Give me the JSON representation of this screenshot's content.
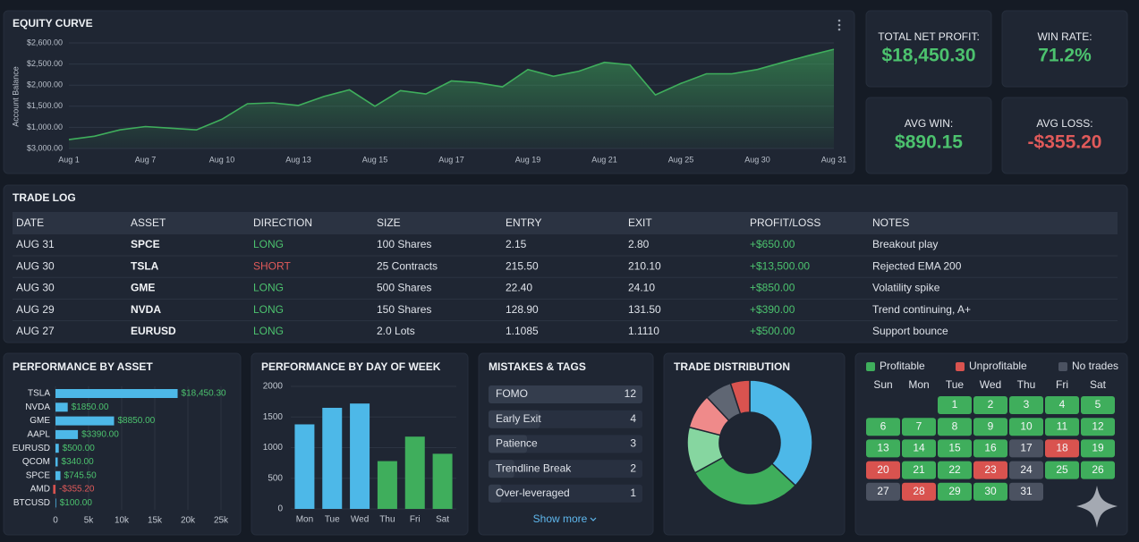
{
  "chart_data": [
    {
      "type": "line",
      "title": "EQUITY CURVE",
      "y_label": "Account Balance",
      "y_labels": [
        "$2,600.00",
        "$2,500.00",
        "$2,000.00",
        "$1,500.00",
        "$1,000.00",
        "$3,000.00"
      ],
      "x_labels": [
        "Aug 1",
        "Aug 7",
        "Aug 10",
        "Aug 13",
        "Aug 15",
        "Aug 17",
        "Aug 19",
        "Aug 21",
        "Aug 25",
        "Aug 30",
        "Aug 31"
      ],
      "values": [
        710,
        790,
        940,
        1020,
        980,
        940,
        1190,
        1560,
        1580,
        1520,
        1730,
        1890,
        1500,
        1870,
        1790,
        2100,
        2060,
        1960,
        2370,
        2210,
        2330,
        2540,
        2480,
        1770,
        2040,
        2270,
        2270,
        2370,
        2540,
        2700,
        2850
      ],
      "ylim": [
        500,
        3000
      ],
      "color": "#3fae5c",
      "grid": true
    },
    {
      "type": "hbar",
      "title": "PERFORMANCE BY ASSET",
      "categories": [
        "TSLA",
        "NVDA",
        "GME",
        "AAPL",
        "EURUSD",
        "QCOM",
        "SPCE",
        "AMD",
        "BTCUSD"
      ],
      "values": [
        18450.3,
        1850,
        8850,
        3390,
        500,
        340,
        745.5,
        -355.2,
        100
      ],
      "value_labels": [
        "$18,450.30",
        "$1850.00",
        "$8850.00",
        "$3390.00",
        "$500.00",
        "$340.00",
        "$745.50",
        "-$355.20",
        "$100.00"
      ],
      "colors": [
        "#4db8e8",
        "#4db8e8",
        "#4db8e8",
        "#4db8e8",
        "#4db8e8",
        "#4db8e8",
        "#4db8e8",
        "#d9534f",
        "#4db8e8"
      ],
      "xlim": [
        0,
        25000
      ],
      "xticks": [
        0,
        {
          "value": 5000,
          "label": "5k"
        },
        {
          "value": 10000,
          "label": "10k"
        },
        {
          "value": 15000,
          "label": "15k"
        },
        {
          "value": 20000,
          "label": "20k"
        },
        {
          "value": 25000,
          "label": "25k"
        }
      ],
      "grid": true
    },
    {
      "type": "bar",
      "title": "PERFORMANCE BY DAY OF WEEK",
      "categories": [
        "Mon",
        "Tue",
        "Wed",
        "Thu",
        "Fri",
        "Sat"
      ],
      "values": [
        1380,
        1650,
        1720,
        780,
        1180,
        900
      ],
      "colors": [
        "#4db8e8",
        "#4db8e8",
        "#4db8e8",
        "#3fae5c",
        "#3fae5c",
        "#3fae5c"
      ],
      "ylim": [
        0,
        2000
      ],
      "yticks": [
        0,
        500,
        1000,
        1500,
        2000
      ],
      "grid": true
    },
    {
      "type": "donut",
      "title": "TRADE DISTRIBUTION",
      "values": [
        37,
        30,
        12,
        9,
        7,
        5
      ],
      "colors": [
        "#4db8e8",
        "#3fae5c",
        "#86d6a0",
        "#ef8a8a",
        "#5f6673",
        "#d9534f"
      ]
    }
  ],
  "stats": [
    {
      "label": "TOTAL NET PROFIT:",
      "value": "$18,450.30",
      "color": "#4cc26e"
    },
    {
      "label": "WIN RATE:",
      "value": "71.2%",
      "color": "#4cc26e"
    },
    {
      "label": "AVG WIN:",
      "value": "$890.15",
      "color": "#4cc26e"
    },
    {
      "label": "AVG LOSS:",
      "value": "-$355.20",
      "color": "#e05a5a"
    }
  ],
  "trade_log": {
    "title": "TRADE LOG",
    "columns": [
      "DATE",
      "ASSET",
      "DIRECTION",
      "SIZE",
      "ENTRY",
      "EXIT",
      "PROFIT/LOSS",
      "NOTES"
    ],
    "rows": [
      [
        "AUG 31",
        "SPCE",
        "LONG",
        "100 Shares",
        "2.15",
        "2.80",
        "+$650.00",
        "Breakout play"
      ],
      [
        "AUG 30",
        "TSLA",
        "SHORT",
        "25 Contracts",
        "215.50",
        "210.10",
        "+$13,500.00",
        "Rejected EMA 200"
      ],
      [
        "AUG 30",
        "GME",
        "LONG",
        "500 Shares",
        "22.40",
        "24.10",
        "+$850.00",
        "Volatility spike"
      ],
      [
        "AUG 29",
        "NVDA",
        "LONG",
        "150 Shares",
        "128.90",
        "131.50",
        "+$390.00",
        "Trend continuing, A+"
      ],
      [
        "AUG 27",
        "EURUSD",
        "LONG",
        "2.0 Lots",
        "1.1085",
        "1.1110",
        "+$500.00",
        "Support bounce"
      ]
    ],
    "direction_colors": [
      "#4cc26e",
      "#e05a5a",
      "#4cc26e",
      "#4cc26e",
      "#4cc26e"
    ],
    "profit_color": "#4cc26e"
  },
  "mistakes": {
    "title": "MISTAKES & TAGS",
    "items": [
      {
        "name": "FOMO",
        "count": 12
      },
      {
        "name": "Early Exit",
        "count": 4
      },
      {
        "name": "Patience",
        "count": 3
      },
      {
        "name": "Trendline Break",
        "count": 2
      },
      {
        "name": "Over-leveraged",
        "count": 1
      }
    ],
    "link": "Show more"
  },
  "calendar": {
    "legend": [
      {
        "name": "Profitable",
        "color": "#3fae5c"
      },
      {
        "name": "Unprofitable",
        "color": "#d9534f"
      },
      {
        "name": "No trades",
        "color": "#4b5261"
      }
    ],
    "weekdays": [
      "Sun",
      "Mon",
      "Tue",
      "Wed",
      "Thu",
      "Fri",
      "Sat"
    ],
    "cells": [
      null,
      null,
      {
        "day": 1,
        "status": 0
      },
      {
        "day": 2,
        "status": 0
      },
      {
        "day": 3,
        "status": 0
      },
      {
        "day": 4,
        "status": 0
      },
      {
        "day": 5,
        "status": 0
      },
      {
        "day": 6,
        "status": 0
      },
      {
        "day": 7,
        "status": 0
      },
      {
        "day": 8,
        "status": 0
      },
      {
        "day": 9,
        "status": 0
      },
      {
        "day": 10,
        "status": 0
      },
      {
        "day": 11,
        "status": 0
      },
      {
        "day": 12,
        "status": 0
      },
      {
        "day": 13,
        "status": 0
      },
      {
        "day": 14,
        "status": 0
      },
      {
        "day": 15,
        "status": 0
      },
      {
        "day": 16,
        "status": 0
      },
      {
        "day": 17,
        "status": 2
      },
      {
        "day": 18,
        "status": 1
      },
      {
        "day": 19,
        "status": 0
      },
      {
        "day": 20,
        "status": 1
      },
      {
        "day": 21,
        "status": 0
      },
      {
        "day": 22,
        "status": 0
      },
      {
        "day": 23,
        "status": 1
      },
      {
        "day": 24,
        "status": 2
      },
      {
        "day": 25,
        "status": 0
      },
      {
        "day": 26,
        "status": 0
      },
      {
        "day": 27,
        "status": 2
      },
      {
        "day": 28,
        "status": 1
      },
      {
        "day": 29,
        "status": 0
      },
      {
        "day": 30,
        "status": 0
      },
      {
        "day": 31,
        "status": 2
      }
    ]
  }
}
